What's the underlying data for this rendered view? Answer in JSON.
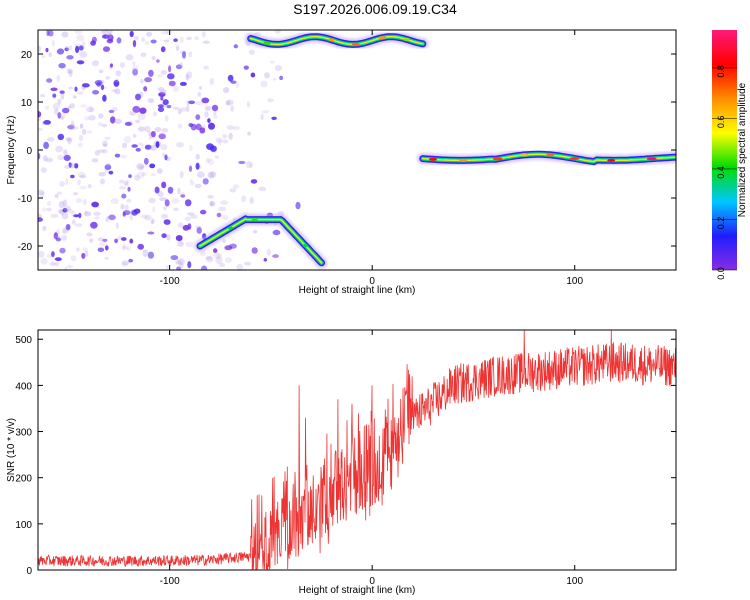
{
  "title": "S197.2026.006.09.19.C34",
  "chart_data": [
    {
      "type": "heatmap",
      "xlabel": "Height of straight line (km)",
      "ylabel": "Frequency (Hz)",
      "xlim": [
        -165,
        150
      ],
      "ylim": [
        -25,
        25
      ],
      "xticks": [
        -100,
        0,
        100
      ],
      "yticks": [
        -20,
        -10,
        0,
        10,
        20
      ],
      "grid": false,
      "colorbar": {
        "label": "Normalized spectral amplitude",
        "range": [
          0.0,
          0.95
        ],
        "ticks": [
          0.0,
          0.2,
          0.4,
          0.6,
          0.8
        ],
        "colormap": "rainbow: purple → blue → cyan → green → yellow → orange → red → magenta",
        "colors": [
          "#8a2be2",
          "#1e1eff",
          "#00c8ff",
          "#00dd00",
          "#ffff00",
          "#ff8c00",
          "#ff0000",
          "#ff1a7a"
        ]
      },
      "features": [
        {
          "description": "scattered low-amplitude speckle",
          "x_range": [
            -165,
            -60
          ],
          "y_range": [
            -25,
            25
          ],
          "amplitude": 0.1
        },
        {
          "description": "upper branch band",
          "x_range": [
            -60,
            25
          ],
          "y_range": [
            20,
            25
          ],
          "amplitude": 0.5
        },
        {
          "description": "lower branch band",
          "x_range": [
            -85,
            -25
          ],
          "y_range": [
            -25,
            -13
          ],
          "amplitude": 0.35
        },
        {
          "description": "main signal band",
          "x_range": [
            25,
            150
          ],
          "y_range": [
            -4,
            -1
          ],
          "amplitude": 0.65
        }
      ]
    },
    {
      "type": "line",
      "xlabel": "Height of straight line (km)",
      "ylabel": "SNR (10 * v/v)",
      "xlim": [
        -165,
        150
      ],
      "ylim": [
        0,
        520
      ],
      "xticks": [
        -100,
        0,
        100
      ],
      "yticks": [
        0,
        100,
        200,
        300,
        400,
        500
      ],
      "grid": false,
      "series_color": "#ee3333",
      "trend": {
        "x": [
          -165,
          -100,
          -80,
          -60,
          -50,
          -40,
          -30,
          -20,
          -10,
          0,
          10,
          20,
          30,
          40,
          60,
          80,
          100,
          120,
          150
        ],
        "y": [
          20,
          20,
          22,
          30,
          60,
          100,
          140,
          170,
          200,
          230,
          280,
          330,
          360,
          400,
          420,
          430,
          440,
          450,
          440
        ]
      },
      "peaks": [
        {
          "x": -36,
          "y": 400
        },
        {
          "x": -33,
          "y": 330
        },
        {
          "x": -17,
          "y": 370
        },
        {
          "x": -10,
          "y": 360
        },
        {
          "x": 0,
          "y": 400
        },
        {
          "x": 75,
          "y": 520
        },
        {
          "x": 118,
          "y": 520
        }
      ]
    }
  ]
}
